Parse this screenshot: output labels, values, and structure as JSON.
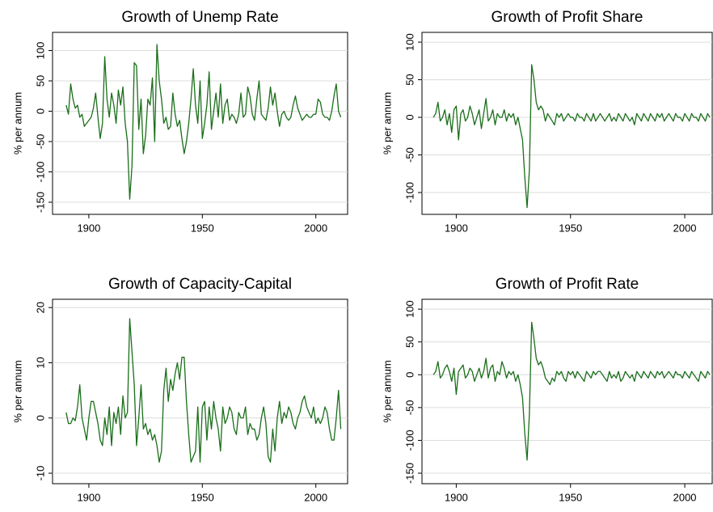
{
  "chart_data": [
    {
      "type": "line",
      "title": "Growth of Unemp Rate",
      "ylabel": "% per annum",
      "color": "#1a6e1a",
      "grid": true,
      "x": [
        1890,
        1891,
        1892,
        1893,
        1894,
        1895,
        1896,
        1897,
        1898,
        1899,
        1900,
        1901,
        1902,
        1903,
        1904,
        1905,
        1906,
        1907,
        1908,
        1909,
        1910,
        1911,
        1912,
        1913,
        1914,
        1915,
        1916,
        1917,
        1918,
        1919,
        1920,
        1921,
        1922,
        1923,
        1924,
        1925,
        1926,
        1927,
        1928,
        1929,
        1930,
        1931,
        1932,
        1933,
        1934,
        1935,
        1936,
        1937,
        1938,
        1939,
        1940,
        1941,
        1942,
        1943,
        1944,
        1945,
        1946,
        1947,
        1948,
        1949,
        1950,
        1951,
        1952,
        1953,
        1954,
        1955,
        1956,
        1957,
        1958,
        1959,
        1960,
        1961,
        1962,
        1963,
        1964,
        1965,
        1966,
        1967,
        1968,
        1969,
        1970,
        1971,
        1972,
        1973,
        1974,
        1975,
        1976,
        1977,
        1978,
        1979,
        1980,
        1981,
        1982,
        1983,
        1984,
        1985,
        1986,
        1987,
        1988,
        1989,
        1990,
        1991,
        1992,
        1993,
        1994,
        1995,
        1996,
        1997,
        1998,
        1999,
        2000,
        2001,
        2002,
        2003,
        2004,
        2005,
        2006,
        2007,
        2008,
        2009,
        2010,
        2011
      ],
      "values": [
        10,
        -5,
        45,
        20,
        5,
        10,
        -10,
        -5,
        -25,
        -20,
        -15,
        -10,
        5,
        30,
        -10,
        -45,
        -20,
        90,
        20,
        -10,
        30,
        10,
        -20,
        35,
        10,
        40,
        -20,
        -50,
        -145,
        -90,
        80,
        75,
        -30,
        20,
        -70,
        -40,
        20,
        10,
        55,
        -50,
        110,
        50,
        20,
        -20,
        -10,
        -30,
        -25,
        30,
        -5,
        -25,
        -15,
        -45,
        -70,
        -50,
        -20,
        20,
        70,
        10,
        -20,
        50,
        -45,
        -20,
        10,
        65,
        -30,
        0,
        30,
        -10,
        45,
        -20,
        10,
        20,
        -15,
        -5,
        -10,
        -20,
        -5,
        30,
        -10,
        -5,
        40,
        25,
        -5,
        -15,
        20,
        50,
        -5,
        -10,
        -15,
        5,
        40,
        10,
        30,
        0,
        -25,
        -5,
        0,
        -10,
        -15,
        -10,
        10,
        25,
        5,
        -5,
        -15,
        -10,
        -5,
        -10,
        -10,
        -5,
        -5,
        20,
        15,
        -5,
        -10,
        -10,
        -15,
        0,
        25,
        45,
        0,
        -10
      ],
      "xlim": [
        1884,
        2014
      ],
      "xticks": [
        1900,
        1950,
        2000
      ],
      "ylim": [
        -170,
        130
      ],
      "yticks": [
        -150,
        -100,
        -50,
        0,
        50,
        100
      ]
    },
    {
      "type": "line",
      "title": "Growth of Profit Share",
      "ylabel": "% per annum",
      "color": "#1a6e1a",
      "grid": true,
      "x": [
        1890,
        1891,
        1892,
        1893,
        1894,
        1895,
        1896,
        1897,
        1898,
        1899,
        1900,
        1901,
        1902,
        1903,
        1904,
        1905,
        1906,
        1907,
        1908,
        1909,
        1910,
        1911,
        1912,
        1913,
        1914,
        1915,
        1916,
        1917,
        1918,
        1919,
        1920,
        1921,
        1922,
        1923,
        1924,
        1925,
        1926,
        1927,
        1928,
        1929,
        1930,
        1931,
        1932,
        1933,
        1934,
        1935,
        1936,
        1937,
        1938,
        1939,
        1940,
        1941,
        1942,
        1943,
        1944,
        1945,
        1946,
        1947,
        1948,
        1949,
        1950,
        1951,
        1952,
        1953,
        1954,
        1955,
        1956,
        1957,
        1958,
        1959,
        1960,
        1961,
        1962,
        1963,
        1964,
        1965,
        1966,
        1967,
        1968,
        1969,
        1970,
        1971,
        1972,
        1973,
        1974,
        1975,
        1976,
        1977,
        1978,
        1979,
        1980,
        1981,
        1982,
        1983,
        1984,
        1985,
        1986,
        1987,
        1988,
        1989,
        1990,
        1991,
        1992,
        1993,
        1994,
        1995,
        1996,
        1997,
        1998,
        1999,
        2000,
        2001,
        2002,
        2003,
        2004,
        2005,
        2006,
        2007,
        2008,
        2009,
        2010,
        2011
      ],
      "values": [
        0,
        5,
        20,
        -5,
        0,
        10,
        -10,
        5,
        -20,
        10,
        15,
        -30,
        5,
        10,
        -5,
        0,
        15,
        5,
        -10,
        0,
        10,
        -15,
        5,
        25,
        -5,
        0,
        10,
        -10,
        5,
        0,
        0,
        10,
        -5,
        5,
        0,
        5,
        -10,
        0,
        -15,
        -30,
        -80,
        -120,
        -70,
        70,
        50,
        20,
        10,
        15,
        10,
        -5,
        5,
        0,
        -5,
        -10,
        5,
        0,
        5,
        -5,
        0,
        5,
        0,
        0,
        -5,
        5,
        0,
        0,
        -5,
        5,
        0,
        -5,
        5,
        -5,
        0,
        5,
        0,
        -5,
        0,
        5,
        -5,
        0,
        -5,
        5,
        0,
        -5,
        5,
        0,
        -5,
        0,
        -10,
        5,
        0,
        -5,
        5,
        0,
        -5,
        5,
        0,
        -5,
        5,
        0,
        5,
        -5,
        0,
        5,
        0,
        -5,
        5,
        0,
        0,
        -5,
        5,
        0,
        -5,
        5,
        0,
        0,
        -5,
        5,
        0,
        -5,
        5,
        0
      ],
      "xlim": [
        1885,
        2012
      ],
      "xticks": [
        1900,
        1950,
        2000
      ],
      "ylim": [
        -129,
        113
      ],
      "yticks": [
        -100,
        -50,
        0,
        50,
        100
      ]
    },
    {
      "type": "line",
      "title": "Growth of Capacity-Capital",
      "ylabel": "% per annum",
      "color": "#1a6e1a",
      "grid": true,
      "x": [
        1890,
        1891,
        1892,
        1893,
        1894,
        1895,
        1896,
        1897,
        1898,
        1899,
        1900,
        1901,
        1902,
        1903,
        1904,
        1905,
        1906,
        1907,
        1908,
        1909,
        1910,
        1911,
        1912,
        1913,
        1914,
        1915,
        1916,
        1917,
        1918,
        1919,
        1920,
        1921,
        1922,
        1923,
        1924,
        1925,
        1926,
        1927,
        1928,
        1929,
        1930,
        1931,
        1932,
        1933,
        1934,
        1935,
        1936,
        1937,
        1938,
        1939,
        1940,
        1941,
        1942,
        1943,
        1944,
        1945,
        1946,
        1947,
        1948,
        1949,
        1950,
        1951,
        1952,
        1953,
        1954,
        1955,
        1956,
        1957,
        1958,
        1959,
        1960,
        1961,
        1962,
        1963,
        1964,
        1965,
        1966,
        1967,
        1968,
        1969,
        1970,
        1971,
        1972,
        1973,
        1974,
        1975,
        1976,
        1977,
        1978,
        1979,
        1980,
        1981,
        1982,
        1983,
        1984,
        1985,
        1986,
        1987,
        1988,
        1989,
        1990,
        1991,
        1992,
        1993,
        1994,
        1995,
        1996,
        1997,
        1998,
        1999,
        2000,
        2001,
        2002,
        2003,
        2004,
        2005,
        2006,
        2007,
        2008,
        2009,
        2010,
        2011
      ],
      "values": [
        1,
        -1,
        -1,
        0,
        -0.5,
        2,
        6,
        0,
        -2,
        -4,
        0,
        3,
        3,
        1,
        -1,
        -4,
        -5,
        0,
        -3,
        2,
        -5,
        1,
        -1,
        2,
        -3,
        4,
        0,
        1,
        18,
        12,
        6,
        -5,
        0,
        6,
        -2,
        -1,
        -3,
        -2,
        -4,
        -3,
        -5,
        -8,
        -6,
        5,
        9,
        3,
        7,
        5,
        8,
        10,
        7,
        11,
        11,
        3,
        -3,
        -8,
        -7,
        -6,
        2,
        -8,
        2,
        3,
        -4,
        2,
        -2,
        3,
        0,
        -2,
        -6,
        2,
        -1,
        0,
        2,
        1,
        -2,
        -3,
        1,
        0,
        0,
        2,
        -3,
        -1,
        -2,
        -2,
        -4,
        -3,
        0,
        2,
        -1,
        -7,
        -8,
        -2,
        -6,
        0,
        3,
        -1,
        1,
        0,
        2,
        1,
        -1,
        -2,
        0,
        1,
        3,
        4,
        2,
        1,
        0,
        2,
        -1,
        0,
        -1,
        0,
        2,
        1,
        -2,
        -4,
        -4,
        0,
        5,
        -2
      ],
      "xlim": [
        1884,
        2014
      ],
      "xticks": [
        1900,
        1950,
        2000
      ],
      "ylim": [
        -11.9,
        21.5
      ],
      "yticks": [
        -10,
        0,
        10,
        20
      ]
    },
    {
      "type": "line",
      "title": "Growth of Profit Rate",
      "ylabel": "% per annum",
      "color": "#1a6e1a",
      "grid": true,
      "x": [
        1890,
        1891,
        1892,
        1893,
        1894,
        1895,
        1896,
        1897,
        1898,
        1899,
        1900,
        1901,
        1902,
        1903,
        1904,
        1905,
        1906,
        1907,
        1908,
        1909,
        1910,
        1911,
        1912,
        1913,
        1914,
        1915,
        1916,
        1917,
        1918,
        1919,
        1920,
        1921,
        1922,
        1923,
        1924,
        1925,
        1926,
        1927,
        1928,
        1929,
        1930,
        1931,
        1932,
        1933,
        1934,
        1935,
        1936,
        1937,
        1938,
        1939,
        1940,
        1941,
        1942,
        1943,
        1944,
        1945,
        1946,
        1947,
        1948,
        1949,
        1950,
        1951,
        1952,
        1953,
        1954,
        1955,
        1956,
        1957,
        1958,
        1959,
        1960,
        1961,
        1962,
        1963,
        1964,
        1965,
        1966,
        1967,
        1968,
        1969,
        1970,
        1971,
        1972,
        1973,
        1974,
        1975,
        1976,
        1977,
        1978,
        1979,
        1980,
        1981,
        1982,
        1983,
        1984,
        1985,
        1986,
        1987,
        1988,
        1989,
        1990,
        1991,
        1992,
        1993,
        1994,
        1995,
        1996,
        1997,
        1998,
        1999,
        2000,
        2001,
        2002,
        2003,
        2004,
        2005,
        2006,
        2007,
        2008,
        2009,
        2010,
        2011
      ],
      "values": [
        0,
        5,
        20,
        -5,
        0,
        10,
        15,
        5,
        -10,
        10,
        -30,
        5,
        10,
        15,
        -5,
        0,
        10,
        5,
        -10,
        0,
        10,
        -5,
        5,
        25,
        -5,
        10,
        15,
        -10,
        5,
        0,
        20,
        10,
        -5,
        5,
        0,
        5,
        -10,
        0,
        -15,
        -35,
        -90,
        -130,
        -60,
        80,
        55,
        25,
        15,
        20,
        10,
        -5,
        -10,
        -15,
        -5,
        -10,
        5,
        0,
        5,
        -5,
        -10,
        5,
        0,
        5,
        -5,
        5,
        0,
        -5,
        -10,
        5,
        0,
        -5,
        5,
        0,
        5,
        5,
        0,
        -5,
        -10,
        5,
        -5,
        0,
        -5,
        5,
        -10,
        -5,
        5,
        0,
        -5,
        0,
        -10,
        5,
        0,
        -5,
        5,
        0,
        -5,
        5,
        0,
        -5,
        5,
        0,
        5,
        -5,
        0,
        5,
        0,
        -5,
        5,
        0,
        0,
        -5,
        5,
        0,
        -5,
        5,
        0,
        -5,
        -10,
        5,
        0,
        -5,
        5,
        0
      ],
      "xlim": [
        1885,
        2012
      ],
      "xticks": [
        1900,
        1950,
        2000
      ],
      "ylim": [
        -166,
        115
      ],
      "yticks": [
        -150,
        -100,
        -50,
        0,
        50,
        100
      ]
    }
  ]
}
